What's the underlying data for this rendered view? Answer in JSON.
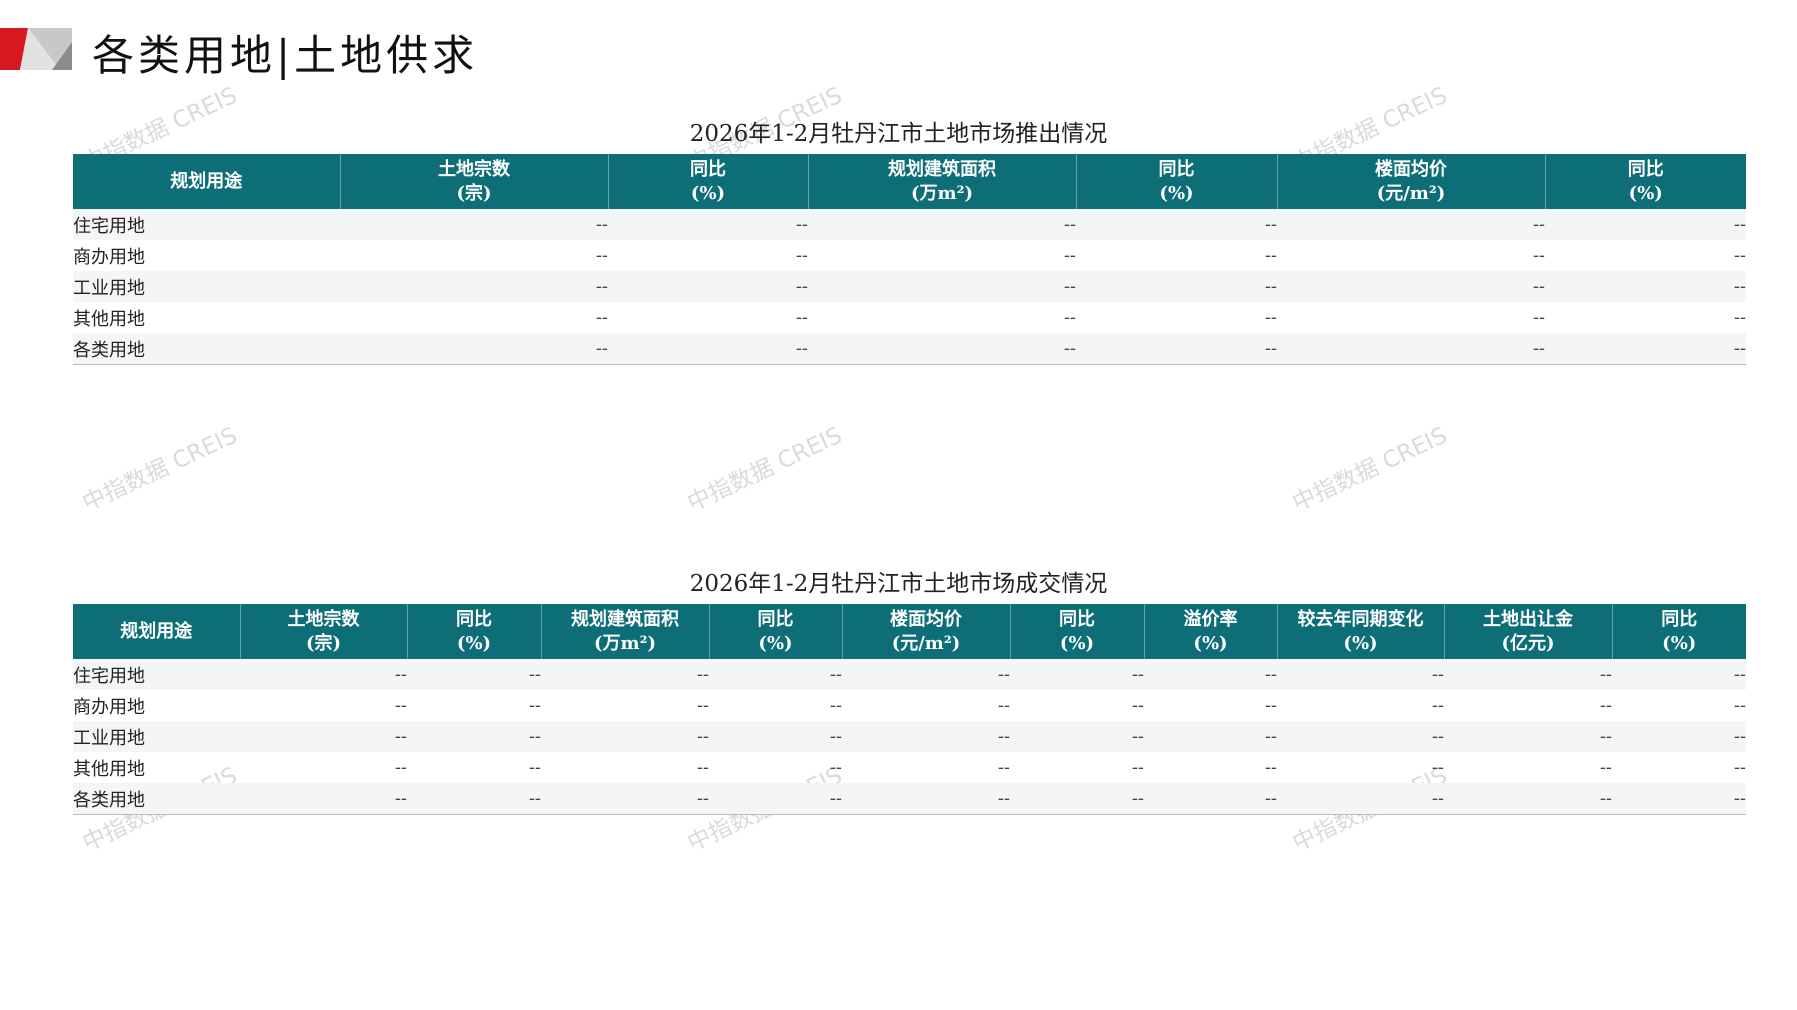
{
  "header": {
    "title": "各类用地|土地供求"
  },
  "watermark": "中指数据 CREIS",
  "supply_table": {
    "title": "2026年1-2月牡丹江市土地市场推出情况",
    "columns": [
      [
        "规划用途",
        ""
      ],
      [
        "土地宗数",
        "(宗)"
      ],
      [
        "同比",
        "(%)"
      ],
      [
        "规划建筑面积",
        "(万m²)"
      ],
      [
        "同比",
        "(%)"
      ],
      [
        "楼面均价",
        "(元/m²)"
      ],
      [
        "同比",
        "(%)"
      ]
    ],
    "rows": [
      [
        "住宅用地",
        "--",
        "--",
        "--",
        "--",
        "--",
        "--"
      ],
      [
        "商办用地",
        "--",
        "--",
        "--",
        "--",
        "--",
        "--"
      ],
      [
        "工业用地",
        "--",
        "--",
        "--",
        "--",
        "--",
        "--"
      ],
      [
        "其他用地",
        "--",
        "--",
        "--",
        "--",
        "--",
        "--"
      ],
      [
        "各类用地",
        "--",
        "--",
        "--",
        "--",
        "--",
        "--"
      ]
    ]
  },
  "deal_table": {
    "title": "2026年1-2月牡丹江市土地市场成交情况",
    "columns": [
      [
        "规划用途",
        ""
      ],
      [
        "土地宗数",
        "(宗)"
      ],
      [
        "同比",
        "(%)"
      ],
      [
        "规划建筑面积",
        "(万m²)"
      ],
      [
        "同比",
        "(%)"
      ],
      [
        "楼面均价",
        "(元/m²)"
      ],
      [
        "同比",
        "(%)"
      ],
      [
        "溢价率",
        "(%)"
      ],
      [
        "较去年同期变化",
        "(%)"
      ],
      [
        "土地出让金",
        "(亿元)"
      ],
      [
        "同比",
        "(%)"
      ]
    ],
    "rows": [
      [
        "住宅用地",
        "--",
        "--",
        "--",
        "--",
        "--",
        "--",
        "--",
        "--",
        "--",
        "--"
      ],
      [
        "商办用地",
        "--",
        "--",
        "--",
        "--",
        "--",
        "--",
        "--",
        "--",
        "--",
        "--"
      ],
      [
        "工业用地",
        "--",
        "--",
        "--",
        "--",
        "--",
        "--",
        "--",
        "--",
        "--",
        "--"
      ],
      [
        "其他用地",
        "--",
        "--",
        "--",
        "--",
        "--",
        "--",
        "--",
        "--",
        "--",
        "--"
      ],
      [
        "各类用地",
        "--",
        "--",
        "--",
        "--",
        "--",
        "--",
        "--",
        "--",
        "--",
        "--"
      ]
    ]
  },
  "colors": {
    "header_bg": "#0e6e78",
    "logo_red": "#d7191f",
    "logo_gray": "#9a9a9a"
  }
}
